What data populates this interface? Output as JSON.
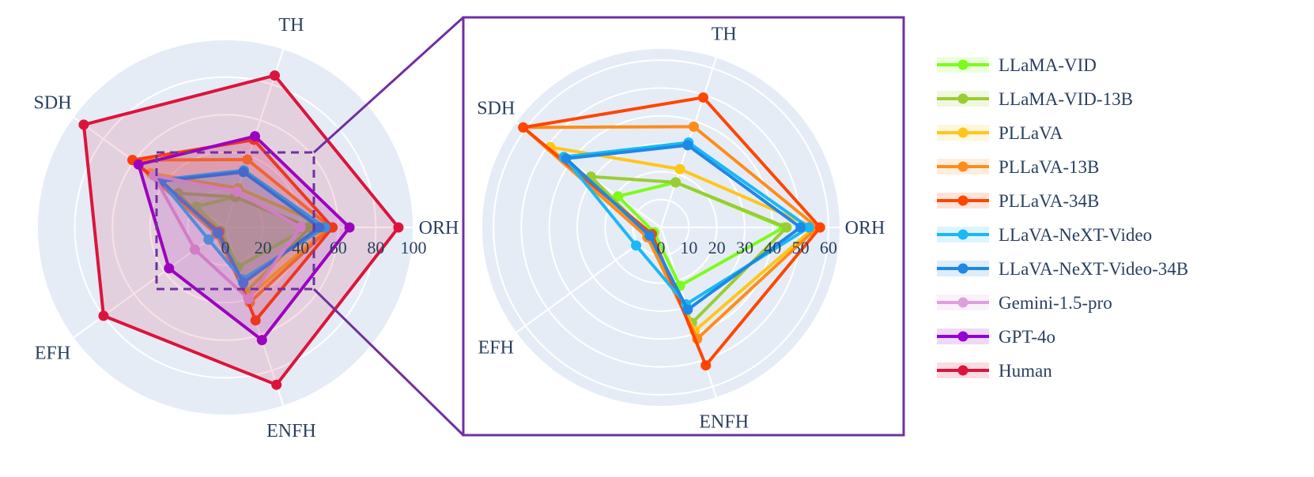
{
  "chart_data": [
    {
      "type": "radar",
      "axes": [
        "ORH",
        "TH",
        "SDH",
        "EFH",
        "ENFH"
      ],
      "tick_labels": [
        "0",
        "20",
        "40",
        "60",
        "80",
        "100"
      ],
      "rlim": [
        0,
        100
      ],
      "grid": true,
      "series": [
        {
          "name": "LLaMA-VID",
          "values": [
            44,
            17,
            19,
            3,
            22
          ]
        },
        {
          "name": "LLaMA-VID-13B",
          "values": [
            45,
            17,
            31,
            5,
            36
          ]
        },
        {
          "name": "PLLaVA",
          "values": [
            55,
            22,
            49,
            6,
            39
          ]
        },
        {
          "name": "PLLaVA-13B",
          "values": [
            56,
            38,
            61,
            6,
            42
          ]
        },
        {
          "name": "PLLaVA-34B",
          "values": [
            57,
            49,
            61,
            4,
            52
          ]
        },
        {
          "name": "LLaVA-NeXT-Video",
          "values": [
            53,
            32,
            43,
            11,
            29
          ]
        },
        {
          "name": "LLaVA-NeXT-Video-34B",
          "values": [
            50,
            31,
            42,
            5,
            31
          ]
        },
        {
          "name": "Gemini-1.5-pro",
          "values": [
            40,
            20,
            47,
            20,
            40
          ]
        },
        {
          "name": "GPT-4o",
          "values": [
            66,
            51,
            57,
            37,
            63
          ]
        },
        {
          "name": "Human",
          "values": [
            92,
            85,
            93,
            80,
            88
          ]
        }
      ],
      "legend_position": "right"
    },
    {
      "type": "radar",
      "axes": [
        "ORH",
        "TH",
        "SDH",
        "EFH",
        "ENFH"
      ],
      "tick_labels": [
        "0",
        "10",
        "20",
        "30",
        "40",
        "50",
        "60"
      ],
      "rlim": [
        0,
        64
      ],
      "grid": true,
      "series_ref": "same series as first chart, excluding Gemini-1.5-pro, GPT-4o and Human"
    }
  ],
  "legend": [
    {
      "name": "LLaMA-VID",
      "color": "#7cfc1a"
    },
    {
      "name": "LLaMA-VID-13B",
      "color": "#9acd32"
    },
    {
      "name": "PLLaVA",
      "color": "#ffc61a"
    },
    {
      "name": "PLLaVA-13B",
      "color": "#ff8c1a"
    },
    {
      "name": "PLLaVA-34B",
      "color": "#ff4500"
    },
    {
      "name": "LLaVA-NeXT-Video",
      "color": "#1ab8f5"
    },
    {
      "name": "LLaVA-NeXT-Video-34B",
      "color": "#1e88e5"
    },
    {
      "name": "Gemini-1.5-pro",
      "color": "#dda0dd"
    },
    {
      "name": "GPT-4o",
      "color": "#9400d3"
    },
    {
      "name": "Human",
      "color": "#dc143c"
    }
  ],
  "colors": {
    "polar_bg": "#e5ecf6",
    "grid": "#ffffff",
    "text": "#2a3f5f",
    "zoom_frame": "#7030a0"
  }
}
